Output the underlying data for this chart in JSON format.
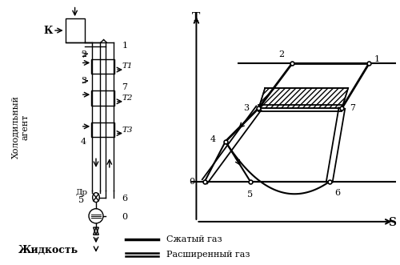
{
  "bg_color": "#ffffff",
  "line_color": "#000000",
  "left": {
    "compressor_label": "К",
    "холодильный_агент": "Холодильный\nагент",
    "жидкость": "Жидкость",
    "Др": "Др",
    "T_labels": [
      "Т1",
      "Т2",
      "Т3"
    ],
    "numbers": [
      "1",
      "2",
      "3",
      "4",
      "5",
      "6",
      "7",
      "0"
    ]
  },
  "right": {
    "points": {
      "0": [
        0.08,
        0.22
      ],
      "1": [
        0.87,
        0.75
      ],
      "2": [
        0.5,
        0.75
      ],
      "3": [
        0.34,
        0.55
      ],
      "4": [
        0.18,
        0.4
      ],
      "5": [
        0.3,
        0.22
      ],
      "6": [
        0.68,
        0.22
      ],
      "7": [
        0.74,
        0.55
      ]
    }
  },
  "legend": {
    "single": "Сжатый газ",
    "double": "Расширенный газ"
  }
}
